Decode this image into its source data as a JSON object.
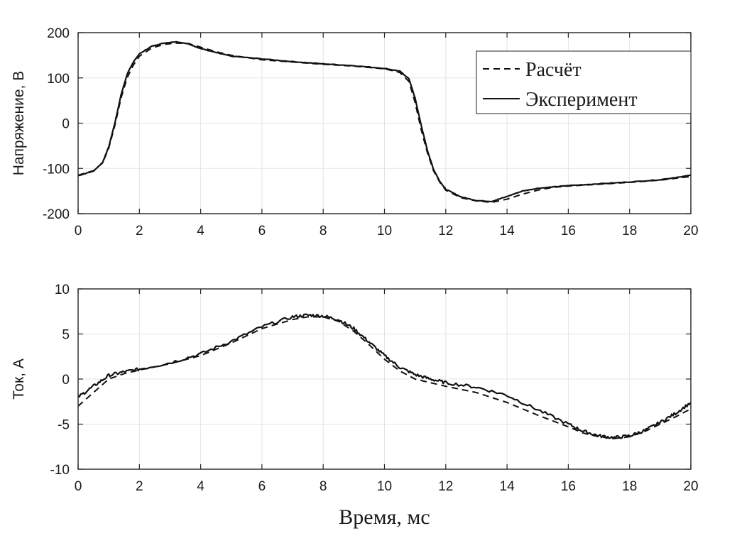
{
  "chart_data": [
    {
      "type": "line",
      "ylabel": "Напряжение, В",
      "xlabel": "",
      "xlim": [
        0,
        20
      ],
      "ylim": [
        -200,
        200
      ],
      "xticks": [
        "0",
        "2",
        "4",
        "6",
        "8",
        "10",
        "12",
        "14",
        "16",
        "18",
        "20"
      ],
      "yticks": [
        "200",
        "100",
        "0",
        "-100",
        "-200"
      ],
      "grid": true,
      "legend_position": "top-right",
      "series": [
        {
          "name": "Расчёт",
          "style": "dashed",
          "x": [
            0,
            0.5,
            0.8,
            1.0,
            1.2,
            1.4,
            1.6,
            1.8,
            2.0,
            2.4,
            2.8,
            3.2,
            3.6,
            4.0,
            4.5,
            5.0,
            6.0,
            7.0,
            8.0,
            9.0,
            10.0,
            10.5,
            10.8,
            11.0,
            11.2,
            11.4,
            11.6,
            11.8,
            12.0,
            12.5,
            13.0,
            13.5,
            14.0,
            14.5,
            15.0,
            15.5,
            16.0,
            17.0,
            18.0,
            19.0,
            20.0
          ],
          "y": [
            -115,
            -105,
            -88,
            -55,
            -5,
            55,
            100,
            128,
            148,
            166,
            174,
            177,
            176,
            168,
            158,
            150,
            140,
            135,
            130,
            126,
            120,
            112,
            92,
            45,
            -15,
            -65,
            -105,
            -130,
            -148,
            -165,
            -172,
            -175,
            -168,
            -157,
            -148,
            -142,
            -139,
            -135,
            -131,
            -126,
            -118
          ]
        },
        {
          "name": "Эксперимент",
          "style": "solid",
          "x": [
            0,
            0.5,
            0.8,
            1.0,
            1.2,
            1.4,
            1.6,
            1.8,
            2.0,
            2.4,
            2.8,
            3.2,
            3.6,
            4.0,
            4.5,
            5.0,
            6.0,
            7.0,
            8.0,
            9.0,
            10.0,
            10.5,
            10.8,
            11.0,
            11.2,
            11.4,
            11.6,
            11.8,
            12.0,
            12.5,
            13.0,
            13.5,
            14.0,
            14.5,
            15.0,
            15.5,
            16.0,
            17.0,
            18.0,
            19.0,
            20.0
          ],
          "y": [
            -116,
            -106,
            -87,
            -52,
            0,
            62,
            108,
            135,
            153,
            170,
            177,
            180,
            175,
            165,
            156,
            148,
            142,
            136,
            131,
            127,
            121,
            115,
            98,
            55,
            -5,
            -60,
            -102,
            -128,
            -146,
            -163,
            -171,
            -173,
            -162,
            -150,
            -144,
            -141,
            -138,
            -134,
            -130,
            -125,
            -115
          ]
        }
      ]
    },
    {
      "type": "line",
      "ylabel": "Ток, А",
      "xlabel": "Время, мс",
      "xlim": [
        0,
        20
      ],
      "ylim": [
        -10,
        10
      ],
      "xticks": [
        "0",
        "2",
        "4",
        "6",
        "8",
        "10",
        "12",
        "14",
        "16",
        "18",
        "20"
      ],
      "yticks": [
        "10",
        "5",
        "0",
        "-5",
        "-10"
      ],
      "grid": true,
      "series": [
        {
          "name": "Расчёт",
          "style": "dashed",
          "x": [
            0,
            0.5,
            1.0,
            1.5,
            2.0,
            3.0,
            4.0,
            5.0,
            6.0,
            7.0,
            7.5,
            8.0,
            8.5,
            9.0,
            9.5,
            10.0,
            10.5,
            11.0,
            11.5,
            12.0,
            13.0,
            14.0,
            15.0,
            16.0,
            16.5,
            17.0,
            17.5,
            18.0,
            18.5,
            19.0,
            19.5,
            20.0
          ],
          "y": [
            -3.0,
            -1.5,
            0.0,
            0.6,
            1.0,
            1.7,
            2.6,
            4.0,
            5.6,
            6.6,
            6.9,
            6.9,
            6.4,
            5.3,
            3.8,
            2.2,
            0.9,
            0.0,
            -0.4,
            -0.8,
            -1.5,
            -2.6,
            -4.0,
            -5.3,
            -6.0,
            -6.4,
            -6.6,
            -6.4,
            -5.8,
            -5.0,
            -4.2,
            -3.3
          ]
        },
        {
          "name": "Эксперимент",
          "style": "solid",
          "x": [
            0,
            0.5,
            1.0,
            1.5,
            2.0,
            3.0,
            4.0,
            5.0,
            6.0,
            7.0,
            7.5,
            8.0,
            8.5,
            9.0,
            9.5,
            10.0,
            10.5,
            11.0,
            11.5,
            12.0,
            13.0,
            14.0,
            15.0,
            16.0,
            16.5,
            17.0,
            17.5,
            18.0,
            18.5,
            19.0,
            19.5,
            20.0
          ],
          "y": [
            -2.0,
            -0.8,
            0.4,
            0.8,
            1.1,
            1.8,
            2.8,
            4.2,
            5.8,
            6.9,
            7.1,
            7.0,
            6.6,
            5.6,
            4.1,
            2.6,
            1.3,
            0.5,
            0.0,
            -0.4,
            -0.9,
            -1.8,
            -3.4,
            -5.0,
            -5.8,
            -6.3,
            -6.5,
            -6.3,
            -5.7,
            -4.8,
            -3.8,
            -2.6
          ]
        }
      ]
    }
  ]
}
